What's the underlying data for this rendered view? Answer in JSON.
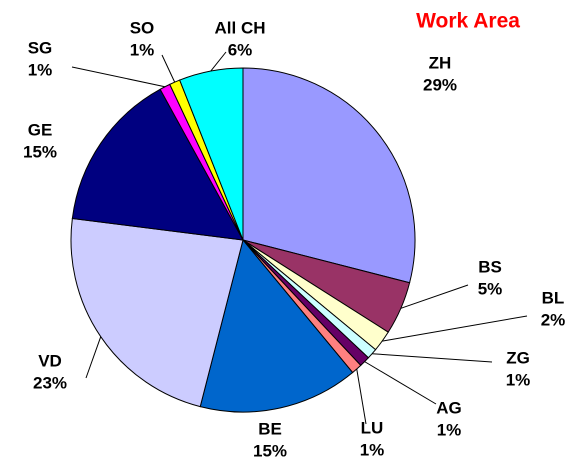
{
  "chart_data": {
    "type": "pie",
    "title": "Work Area",
    "categories": [
      "ZH",
      "BS",
      "BL",
      "ZG",
      "AG",
      "LU",
      "BE",
      "VD",
      "GE",
      "SG",
      "SO",
      "All CH"
    ],
    "values": [
      29,
      5,
      2,
      1,
      1,
      1,
      15,
      23,
      15,
      1,
      1,
      6
    ],
    "value_labels": [
      "29%",
      "5%",
      "2%",
      "1%",
      "1%",
      "1%",
      "15%",
      "23%",
      "15%",
      "1%",
      "1%",
      "6%"
    ],
    "colors": [
      "#9999ff",
      "#993366",
      "#ffffcc",
      "#ccffff",
      "#660066",
      "#ff8080",
      "#0066cc",
      "#ccccff",
      "#000080",
      "#ff00ff",
      "#ffff00",
      "#00ffff"
    ]
  }
}
